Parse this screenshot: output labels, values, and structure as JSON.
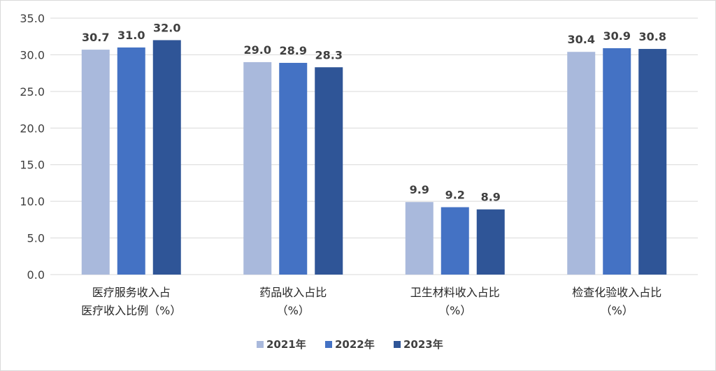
{
  "chart_data": {
    "type": "bar",
    "categories": [
      [
        "医疗服务收入占",
        "医疗收入比例（%）"
      ],
      [
        "药品收入占比",
        "（%）"
      ],
      [
        "卫生材料收入占比",
        "（%）"
      ],
      [
        "检查化验收入占比",
        "（%）"
      ]
    ],
    "series": [
      {
        "name": "2021年",
        "values": [
          30.7,
          29.0,
          9.9,
          30.4
        ],
        "labels": [
          "30.7",
          "29.0",
          "9.9",
          "30.4"
        ],
        "color": "#A9B9DC"
      },
      {
        "name": "2022年",
        "values": [
          31.0,
          28.9,
          9.2,
          30.9
        ],
        "labels": [
          "31.0",
          "28.9",
          "9.2",
          "30.9"
        ],
        "color": "#4472C4"
      },
      {
        "name": "2023年",
        "values": [
          32.0,
          28.3,
          8.9,
          30.8
        ],
        "labels": [
          "32.0",
          "28.3",
          "8.9",
          "30.8"
        ],
        "color": "#2F5597"
      }
    ],
    "ylim": [
      0,
      35
    ],
    "yticks": [
      "0.0",
      "5.0",
      "10.0",
      "15.0",
      "20.0",
      "25.0",
      "30.0",
      "35.0"
    ],
    "grid": true,
    "legend": "bottom"
  }
}
